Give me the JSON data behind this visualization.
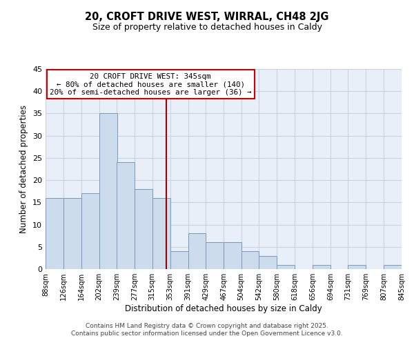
{
  "title": "20, CROFT DRIVE WEST, WIRRAL, CH48 2JG",
  "subtitle": "Size of property relative to detached houses in Caldy",
  "xlabel": "Distribution of detached houses by size in Caldy",
  "ylabel": "Number of detached properties",
  "bar_color": "#ccdcec",
  "bar_edge_color": "#7799bb",
  "background_color": "#e8eff8",
  "grid_color": "#c8d4e0",
  "vline_x": 345,
  "vline_color": "#990000",
  "annotation_lines": [
    "20 CROFT DRIVE WEST: 345sqm",
    "← 80% of detached houses are smaller (140)",
    "20% of semi-detached houses are larger (36) →"
  ],
  "bin_edges": [
    88,
    126,
    164,
    202,
    239,
    277,
    315,
    353,
    391,
    429,
    467,
    504,
    542,
    580,
    618,
    656,
    694,
    731,
    769,
    807,
    845
  ],
  "bin_counts": [
    16,
    16,
    17,
    35,
    24,
    18,
    16,
    4,
    8,
    6,
    6,
    4,
    3,
    1,
    0,
    1,
    0,
    1,
    0,
    1
  ],
  "xlim": [
    88,
    845
  ],
  "ylim": [
    0,
    45
  ],
  "yticks": [
    0,
    5,
    10,
    15,
    20,
    25,
    30,
    35,
    40,
    45
  ],
  "xtick_labels": [
    "88sqm",
    "126sqm",
    "164sqm",
    "202sqm",
    "239sqm",
    "277sqm",
    "315sqm",
    "353sqm",
    "391sqm",
    "429sqm",
    "467sqm",
    "504sqm",
    "542sqm",
    "580sqm",
    "618sqm",
    "656sqm",
    "694sqm",
    "731sqm",
    "769sqm",
    "807sqm",
    "845sqm"
  ],
  "footer_lines": [
    "Contains HM Land Registry data © Crown copyright and database right 2025.",
    "Contains public sector information licensed under the Open Government Licence v3.0."
  ]
}
